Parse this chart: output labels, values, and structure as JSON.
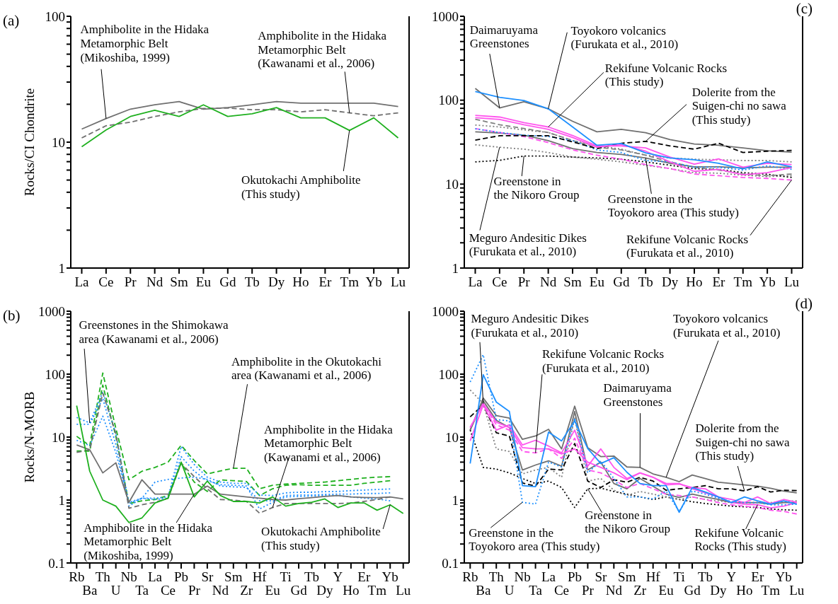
{
  "chart_data": [
    {
      "type": "line",
      "title": "(a)",
      "ylabel": "Rocks/CI Chondrite",
      "log": true,
      "marker": "none",
      "categories": [
        "La",
        "Ce",
        "Pr",
        "Nd",
        "Sm",
        "Eu",
        "Gd",
        "Tb",
        "Dy",
        "Ho",
        "Er",
        "Tm",
        "Yb",
        "Lu"
      ],
      "ylim": [
        1,
        100
      ],
      "yticks": [
        1,
        {
          "value": 2,
          "label": null
        },
        {
          "value": 3,
          "label": null
        },
        {
          "value": 4,
          "label": null
        },
        {
          "value": 5,
          "label": null
        },
        {
          "value": 6,
          "label": null
        },
        {
          "value": 7,
          "label": null
        },
        {
          "value": 8,
          "label": null
        },
        {
          "value": 9,
          "label": null
        },
        10,
        {
          "value": 20,
          "label": null
        },
        {
          "value": 30,
          "label": null
        },
        {
          "value": 40,
          "label": null
        },
        {
          "value": 50,
          "label": null
        },
        {
          "value": 60,
          "label": null
        },
        {
          "value": 70,
          "label": null
        },
        {
          "value": 80,
          "label": null
        },
        {
          "value": 90,
          "label": null
        },
        100
      ],
      "series": [
        {
          "color": "#707070",
          "line_style": "solid",
          "values": [
            12.7,
            15.4,
            18.3,
            19.8,
            21,
            18.3,
            18.8,
            19.8,
            21,
            20.4,
            20.4,
            20.4,
            20.4,
            19.2
          ]
        },
        {
          "color": "#707070",
          "line_style": "dashed",
          "values": [
            10.8,
            13.5,
            14.4,
            16,
            17.4,
            18.5,
            18.7,
            18.1,
            18.1,
            17.4,
            18.1,
            17.1,
            16.2,
            17.1
          ]
        },
        {
          "color": "#1fb01f",
          "line_style": "solid",
          "values": [
            9.2,
            12.5,
            16,
            17.9,
            16,
            19.8,
            16,
            16.8,
            18.8,
            15.6,
            15.6,
            12.4,
            15.6,
            10.8
          ]
        }
      ],
      "annotations": [
        {
          "text": "Amphibolite in the Hidaka\nMetamorphic Belt\n(Mikoshiba, 1999)",
          "x": "Ce",
          "y": 15.4
        },
        {
          "text": "Amphibolite in the Hidaka\nMetamorphic Belt\n(Kawanami et al., 2006)",
          "x": "Tm",
          "y": 17.1
        },
        {
          "text": "Okutokachi Amphibolite\n(This study)",
          "x": "Tm",
          "y": 12.4
        }
      ]
    },
    {
      "type": "line",
      "title": "(c)",
      "log": true,
      "marker": "none",
      "categories": [
        "La",
        "Ce",
        "Pr",
        "Nd",
        "Sm",
        "Eu",
        "Gd",
        "Tb",
        "Dy",
        "Ho",
        "Er",
        "Tm",
        "Yb",
        "Lu"
      ],
      "ylim": [
        1,
        1000
      ],
      "yticks": [
        1,
        {
          "value": 2,
          "label": null
        },
        {
          "value": 3,
          "label": null
        },
        {
          "value": 4,
          "label": null
        },
        {
          "value": 5,
          "label": null
        },
        {
          "value": 6,
          "label": null
        },
        {
          "value": 7,
          "label": null
        },
        {
          "value": 8,
          "label": null
        },
        {
          "value": 9,
          "label": null
        },
        10,
        {
          "value": 20,
          "label": null
        },
        {
          "value": 30,
          "label": null
        },
        {
          "value": 40,
          "label": null
        },
        {
          "value": 50,
          "label": null
        },
        {
          "value": 60,
          "label": null
        },
        {
          "value": 70,
          "label": null
        },
        {
          "value": 80,
          "label": null
        },
        {
          "value": 90,
          "label": null
        },
        100,
        {
          "value": 200,
          "label": null
        },
        {
          "value": 300,
          "label": null
        },
        {
          "value": 400,
          "label": null
        },
        {
          "value": 500,
          "label": null
        },
        {
          "value": 600,
          "label": null
        },
        {
          "value": 700,
          "label": null
        },
        {
          "value": 800,
          "label": null
        },
        {
          "value": 900,
          "label": null
        },
        1000
      ],
      "series": [
        {
          "color": "#808080",
          "line_style": "dotted",
          "values": [
            29.4,
            27.5,
            26.1,
            23.8,
            21,
            19.8,
            18.4,
            16.8,
            15.3,
            13.7,
            13.5,
            12.8,
            12.3,
            12.6
          ]
        },
        {
          "color": "#000000",
          "line_style": "dotted",
          "values": [
            18.4,
            19.2,
            21.6,
            21.6,
            21,
            20.5,
            19.8,
            18.4,
            16.8,
            15.3,
            15,
            13.7,
            13.1,
            12
          ]
        },
        {
          "color": "#808080",
          "line_style": "dotted",
          "values": [
            50.6,
            48,
            44.3,
            41.2,
            33,
            28.5,
            26.1,
            22.1,
            20.5,
            19.8,
            19.5,
            19.1,
            19.1,
            18.4
          ]
        },
        {
          "color": "#808080",
          "line_style": "dashed",
          "values": [
            59.4,
            51,
            46,
            41.2,
            33,
            27.5,
            25.6,
            22.1,
            18.4,
            15.9,
            14.7,
            13.2,
            12.6,
            13.2
          ]
        },
        {
          "color": "#707070",
          "line_style": "solid",
          "values": [
            42,
            40.6,
            38.3,
            33,
            26.5,
            23.8,
            22.6,
            20.5,
            17.7,
            16.1,
            16.1,
            15.6,
            15.9,
            15.9
          ]
        },
        {
          "color": "#ff55ee",
          "line_style": "dashed",
          "values": [
            45.9,
            41.2,
            36.9,
            31.2,
            25.6,
            22.1,
            19.8,
            17.1,
            15.3,
            13.2,
            12.6,
            12,
            11.7,
            11.2
          ]
        },
        {
          "color": "#1e90ff",
          "line_style": "dotted",
          "values": [
            45.6,
            41.2,
            38.3,
            36.9,
            33,
            25.6,
            23.8,
            19.1,
            18.4,
            15.9,
            15.9,
            14.7,
            16.5,
            15
          ]
        },
        {
          "color": "#707070",
          "line_style": "solid",
          "values": [
            138,
            81,
            96,
            79,
            56,
            42,
            45,
            41,
            34,
            30,
            29,
            27,
            25,
            24
          ]
        },
        {
          "color": "#000000",
          "line_style": "dashed",
          "values": [
            33.5,
            37.7,
            37.7,
            37.7,
            31.9,
            26.5,
            30.7,
            32.3,
            28.5,
            26.1,
            30.7,
            23.8,
            24.7,
            25.2
          ]
        },
        {
          "color": "#ff55ee",
          "line_style": "solid",
          "values": [
            66,
            63,
            54,
            48,
            38,
            28.5,
            28.5,
            27,
            21,
            17.3,
            20,
            15.9,
            17.7,
            17.1
          ]
        },
        {
          "color": "#ff55ee",
          "line_style": "solid",
          "values": [
            62,
            59,
            51,
            45,
            36,
            27.5,
            29.6,
            24.7,
            18.4,
            14.2,
            15,
            12.9,
            13.7,
            15.8
          ]
        },
        {
          "color": "#1e90ff",
          "line_style": "solid",
          "values": [
            127,
            108,
            99,
            79,
            48,
            29,
            30.5,
            23.6,
            20.5,
            19.5,
            17.7,
            15.2,
            18.4,
            16.1
          ]
        }
      ],
      "annotations": [
        {
          "text": "Daimaruyama\nGreenstones",
          "x": "Ce",
          "y": 81
        },
        {
          "text": "Toyokoro volcanics\n(Furukata et al., 2010)",
          "x": "Nd",
          "y": 79
        },
        {
          "text": "Rekifune Volcanic Rocks\n(This study)",
          "x": "Nd",
          "y": 48
        },
        {
          "text": "Dolerite from the\nSuigen-chi no sawa\n(This study)",
          "x": "Tb",
          "y": 32.3
        },
        {
          "text": "Greenstone in\nthe Nikoro Group",
          "x": "Pr",
          "y": 21.6
        },
        {
          "text": "Greenstone in the\nToyokoro area (This study)",
          "x": "Tb",
          "y": 20.5
        },
        {
          "text": "Meguro Andesitic Dikes\n(Furukata et al., 2010)",
          "x": "Ce",
          "y": 27.5
        },
        {
          "text": "Rekifune Volcanic Rocks\n(Furukata et al., 2010)",
          "x": "Lu",
          "y": 11.2
        }
      ]
    },
    {
      "type": "line",
      "title": "(b)",
      "ylabel": "Rocks/N-MORB",
      "log": true,
      "marker": "none",
      "categories": [
        "Rb",
        "Ba",
        "Th",
        "U",
        "Nb",
        "Ta",
        "La",
        "Ce",
        "Pb",
        "Pr",
        "Sr",
        "Nd",
        "Sm",
        "Zr",
        "Hf",
        "Eu",
        "Ti",
        "Gd",
        "Tb",
        "Dy",
        "Y",
        "Ho",
        "Er",
        "Tm",
        "Yb",
        "Lu"
      ],
      "ylim": [
        0.1,
        1000
      ],
      "yticks": [
        0.1,
        {
          "value": 0.2,
          "label": null
        },
        {
          "value": 0.3,
          "label": null
        },
        {
          "value": 0.4,
          "label": null
        },
        {
          "value": 0.5,
          "label": null
        },
        {
          "value": 0.6,
          "label": null
        },
        {
          "value": 0.7,
          "label": null
        },
        {
          "value": 0.8,
          "label": null
        },
        {
          "value": 0.9,
          "label": null
        },
        1,
        {
          "value": 2,
          "label": null
        },
        {
          "value": 3,
          "label": null
        },
        {
          "value": 4,
          "label": null
        },
        {
          "value": 5,
          "label": null
        },
        {
          "value": 6,
          "label": null
        },
        {
          "value": 7,
          "label": null
        },
        {
          "value": 8,
          "label": null
        },
        {
          "value": 9,
          "label": null
        },
        10,
        {
          "value": 20,
          "label": null
        },
        {
          "value": 30,
          "label": null
        },
        {
          "value": 40,
          "label": null
        },
        {
          "value": 50,
          "label": null
        },
        {
          "value": 60,
          "label": null
        },
        {
          "value": 70,
          "label": null
        },
        {
          "value": 80,
          "label": null
        },
        {
          "value": 90,
          "label": null
        },
        100,
        {
          "value": 200,
          "label": null
        },
        {
          "value": 300,
          "label": null
        },
        {
          "value": 400,
          "label": null
        },
        {
          "value": 500,
          "label": null
        },
        {
          "value": 600,
          "label": null
        },
        {
          "value": 700,
          "label": null
        },
        {
          "value": 800,
          "label": null
        },
        {
          "value": 900,
          "label": null
        },
        1000
      ],
      "series": [
        {
          "color": "#1fb01f",
          "line_style": "dashed",
          "values": [
            10.3,
            7.3,
            104,
            13.8,
            2.1,
            2.87,
            3.3,
            4.0,
            7.4,
            4.25,
            2.6,
            2.9,
            3.2,
            3.2,
            1.51,
            1.72,
            1.79,
            1.84,
            1.88,
            1.93,
            2.03,
            2.13,
            2.24,
            2.31,
            2.35,
            null
          ]
        },
        {
          "color": "#1fb01f",
          "line_style": "dashed",
          "values": [
            6.0,
            6.0,
            67,
            10.3,
            0.88,
            0.97,
            1.02,
            1.18,
            3.85,
            1.93,
            1.37,
            2.09,
            2.03,
            1.97,
            1.18,
            1.51,
            1.72,
            1.75,
            1.72,
            1.72,
            1.72,
            1.72,
            1.84,
            1.93,
            2.03,
            null
          ]
        },
        {
          "color": "#1e90ff",
          "line_style": "dotted",
          "values": [
            20.5,
            16.8,
            52,
            11.4,
            0.88,
            1.07,
            1.07,
            1.12,
            7.1,
            3.67,
            2.31,
            1.93,
            1.84,
            1.84,
            1.2,
            1.18,
            1.3,
            1.33,
            1.33,
            1.36,
            1.37,
            1.41,
            1.44,
            1.47,
            1.5,
            null
          ]
        },
        {
          "color": "#1e90ff",
          "line_style": "dotted",
          "values": [
            16,
            16,
            41,
            7.6,
            0.8,
            1.07,
            1.93,
            2.13,
            2.24,
            2.31,
            2.13,
            1.67,
            1.62,
            1.59,
            0.97,
            0.97,
            1.18,
            1.2,
            1.2,
            1.23,
            1.24,
            1.24,
            1.27,
            1.27,
            1.3,
            null
          ]
        },
        {
          "color": "#1e90ff",
          "line_style": "dotted",
          "values": [
            8.9,
            7.3,
            21.5,
            5.7,
            0.92,
            1.07,
            1.02,
            1.07,
            4.9,
            2.87,
            2.03,
            1.75,
            1.72,
            1.67,
            0.72,
            0.92,
            1.12,
            1.14,
            1.16,
            1.18,
            1.18,
            1.12,
            1.07,
            1.04,
            0.97,
            null
          ]
        },
        {
          "color": "#707070",
          "line_style": "dashed",
          "values": [
            5.7,
            6.3,
            50,
            11.4,
            0.74,
            0.84,
            0.92,
            1.07,
            3.85,
            2.35,
            1.51,
            1.02,
            1.0,
            0.95,
            0.62,
            0.76,
            0.88,
            0.88,
            0.88,
            0.88,
            0.88,
            0.9,
            0.95,
            1.02,
            1.12,
            null
          ]
        },
        {
          "color": "#707070",
          "line_style": "solid",
          "values": [
            7.5,
            6.3,
            2.7,
            3.9,
            0.92,
            2.1,
            1.24,
            1.24,
            1.24,
            1.24,
            1.67,
            1.24,
            1.18,
            1.12,
            1.07,
            1.02,
            1.0,
            1.05,
            1.09,
            1.14,
            1.18,
            1.12,
            1.1,
            1.09,
            1.12,
            1.04
          ]
        },
        {
          "color": "#1fb01f",
          "line_style": "solid",
          "values": [
            31.6,
            2.87,
            1.0,
            0.8,
            0.44,
            0.52,
            0.9,
            1.07,
            4.0,
            1.12,
            2.0,
            1.18,
            0.95,
            0.95,
            0.9,
            1.12,
            0.8,
            0.88,
            0.92,
            1.04,
            0.76,
            0.9,
            0.9,
            0.69,
            0.84,
            0.61
          ]
        }
      ],
      "annotations": [
        {
          "text": "Greenstones in the Shimokawa\narea (Kawanami et al., 2006)",
          "x": "Ba",
          "y": 16.8
        },
        {
          "text": "Amphibolite in the Okutokachi\narea (Kawanami et al., 2006)",
          "x": "Sm",
          "y": 3.2
        },
        {
          "text": "Amphibolite in the Hidaka\nMetamorphic Belt\n(Kawanami et al., 2006)",
          "x": "Eu",
          "y": 0.76
        },
        {
          "text": "Amphibolite in the Hidaka\nMetamorphic Belt\n(Mikoshiba, 1999)",
          "x": "Pr",
          "y": 1.24
        },
        {
          "text": "Okutokachi Amphibolite\n(This study)",
          "x": "Yb",
          "y": 0.84
        }
      ]
    },
    {
      "type": "line",
      "title": "(d)",
      "log": true,
      "marker": "none",
      "categories": [
        "Rb",
        "Ba",
        "Th",
        "U",
        "Nb",
        "Ta",
        "La",
        "Ce",
        "Pb",
        "Pr",
        "Sr",
        "Nd",
        "Sm",
        "Zr",
        "Hf",
        "Eu",
        "Ti",
        "Gd",
        "Tb",
        "Dy",
        "Y",
        "Ho",
        "Er",
        "Tm",
        "Yb",
        "Lu"
      ],
      "ylim": [
        0.1,
        1000
      ],
      "yticks": [
        0.1,
        {
          "value": 0.2,
          "label": null
        },
        {
          "value": 0.3,
          "label": null
        },
        {
          "value": 0.4,
          "label": null
        },
        {
          "value": 0.5,
          "label": null
        },
        {
          "value": 0.6,
          "label": null
        },
        {
          "value": 0.7,
          "label": null
        },
        {
          "value": 0.8,
          "label": null
        },
        {
          "value": 0.9,
          "label": null
        },
        1,
        {
          "value": 2,
          "label": null
        },
        {
          "value": 3,
          "label": null
        },
        {
          "value": 4,
          "label": null
        },
        {
          "value": 5,
          "label": null
        },
        {
          "value": 6,
          "label": null
        },
        {
          "value": 7,
          "label": null
        },
        {
          "value": 8,
          "label": null
        },
        {
          "value": 9,
          "label": null
        },
        10,
        {
          "value": 20,
          "label": null
        },
        {
          "value": 30,
          "label": null
        },
        {
          "value": 40,
          "label": null
        },
        {
          "value": 50,
          "label": null
        },
        {
          "value": 60,
          "label": null
        },
        {
          "value": 70,
          "label": null
        },
        {
          "value": 80,
          "label": null
        },
        {
          "value": 90,
          "label": null
        },
        100,
        {
          "value": 200,
          "label": null
        },
        {
          "value": 300,
          "label": null
        },
        {
          "value": 400,
          "label": null
        },
        {
          "value": 500,
          "label": null
        },
        {
          "value": 600,
          "label": null
        },
        {
          "value": 700,
          "label": null
        },
        {
          "value": 800,
          "label": null
        },
        {
          "value": 900,
          "label": null
        },
        1000
      ],
      "series": [
        {
          "color": "#000000",
          "line_style": "dotted",
          "values": [
            12.9,
            3.3,
            3.1,
            2.7,
            2.2,
            1.83,
            2.0,
            1.58,
            0.76,
            1.51,
            1.54,
            1.37,
            1.24,
            1.12,
            1.02,
            1.12,
            1.02,
            0.94,
            0.88,
            0.84,
            0.8,
            0.78,
            0.76,
            0.72,
            0.7,
            0.69
          ]
        },
        {
          "color": "#808080",
          "line_style": "dotted",
          "values": [
            56,
            34,
            6.5,
            5.9,
            2.6,
            3.0,
            3.3,
            2.3,
            20,
            2.0,
            2.2,
            1.43,
            1.18,
            1.37,
            1.24,
            1.12,
            1.02,
            1.12,
            1.02,
            0.97,
            0.91,
            0.91,
            0.91,
            0.91,
            0.95,
            0.97
          ]
        },
        {
          "color": "#707070",
          "line_style": "solid",
          "values": [
            12.9,
            37.6,
            18.5,
            14.2,
            3.0,
            3.6,
            4.2,
            3.45,
            25.5,
            3.0,
            4.0,
            1.83,
            1.51,
            2.2,
            1.66,
            1.24,
            1.1,
            1.24,
            1.12,
            1.02,
            0.91,
            0.91,
            0.91,
            0.86,
            0.91,
            0.91
          ]
        },
        {
          "color": "#707070",
          "line_style": "solid",
          "values": [
            12.9,
            41.6,
            22,
            20,
            9.2,
            10.4,
            13.3,
            6.5,
            31,
            6.8,
            4.9,
            5.0,
            3.35,
            3.3,
            2.6,
            2.3,
            1.96,
            2.5,
            2.2,
            1.92,
            1.83,
            1.74,
            1.66,
            1.54,
            1.39,
            1.3
          ]
        },
        {
          "color": "#ff55ee",
          "line_style": "dashed",
          "values": [
            14.2,
            34,
            15.7,
            12.9,
            5.9,
            5.6,
            6.5,
            4.6,
            9.6,
            3.0,
            2.7,
            2.1,
            1.58,
            1.83,
            1.51,
            1.24,
            1.18,
            1.12,
            1.02,
            0.91,
            0.84,
            0.8,
            0.76,
            0.69,
            0.66,
            0.6
          ]
        },
        {
          "color": "#000000",
          "line_style": "dashed",
          "values": [
            21,
            32.6,
            11.7,
            10.4,
            1.87,
            1.66,
            3.1,
            3.0,
            7.9,
            2.0,
            1.58,
            2.1,
            1.92,
            2.3,
            2.0,
            1.43,
            1.51,
            1.58,
            1.69,
            1.51,
            1.51,
            1.39,
            1.63,
            1.34,
            1.43,
            1.41
          ]
        },
        {
          "color": "#ff55ee",
          "line_style": "solid",
          "values": [
            8.7,
            32.6,
            12.9,
            15.7,
            7.5,
            8.9,
            7.2,
            5.6,
            12.9,
            3.45,
            6.5,
            3.3,
            2.2,
            2.7,
            2.3,
            1.74,
            1.8,
            1.58,
            1.51,
            1.12,
            1.02,
            0.91,
            1.12,
            0.88,
            1.02,
            0.92
          ]
        },
        {
          "color": "#ff55ee",
          "line_style": "solid",
          "values": [
            14.2,
            34.2,
            17.3,
            14.2,
            6.8,
            6.5,
            6.5,
            5.4,
            6.5,
            4.0,
            3.3,
            2.7,
            2.1,
            2.7,
            2.3,
            1.83,
            1.83,
            1.51,
            1.3,
            1.12,
            0.91,
            0.86,
            0.84,
            0.75,
            0.8,
            0.91
          ]
        },
        {
          "color": "#1e90ff",
          "line_style": "dotted",
          "values": [
            75,
            204,
            19,
            18.1,
            0.92,
            0.86,
            4.0,
            3.35,
            20,
            2.7,
            4.2,
            2.2,
            1.12,
            1.12,
            1.04,
            1.39,
            0.66,
            1.39,
            1.24,
            1.07,
            0.94,
            0.91,
            0.91,
            0.84,
            0.84,
            0.86
          ]
        },
        {
          "color": "#1e90ff",
          "line_style": "solid",
          "values": [
            3.8,
            98,
            36,
            25.5,
            1.69,
            1.63,
            12,
            8.7,
            18.1,
            6.6,
            3.8,
            4.7,
            2.76,
            1.83,
            1.69,
            1.69,
            0.64,
            1.58,
            1.34,
            1.12,
            0.91,
            1.12,
            0.97,
            0.86,
            0.97,
            0.86
          ]
        }
      ],
      "annotations": [
        {
          "text": "Meguro Andesitic Dikes\n(Furukata et al., 2010)",
          "x": "Ba",
          "y": 34
        },
        {
          "text": "Rekifune Volcanic Rocks\n(Furukata et al., 2010)",
          "x": "Ta",
          "y": 5.6
        },
        {
          "text": "Daimaruyama\nGreenstones",
          "x": "Zr",
          "y": 3.3
        },
        {
          "text": "Toyokoro volcanics\n(Furukata et al., 2010)",
          "x": "Eu",
          "y": 2.3
        },
        {
          "text": "Dolerite from the\nSuigen-chi no sawa\n(This study)",
          "x": "Ho",
          "y": 1.39
        },
        {
          "text": "Greenstone in the\nToyokoro area (This study)",
          "x": "Nb",
          "y": 0.92
        },
        {
          "text": "Greenstone in\nthe Nikoro Group",
          "x": "Pr",
          "y": 1.51
        },
        {
          "text": "Rekifune Volcanic\nRocks (This study)",
          "x": "Er",
          "y": 0.84
        }
      ]
    }
  ]
}
